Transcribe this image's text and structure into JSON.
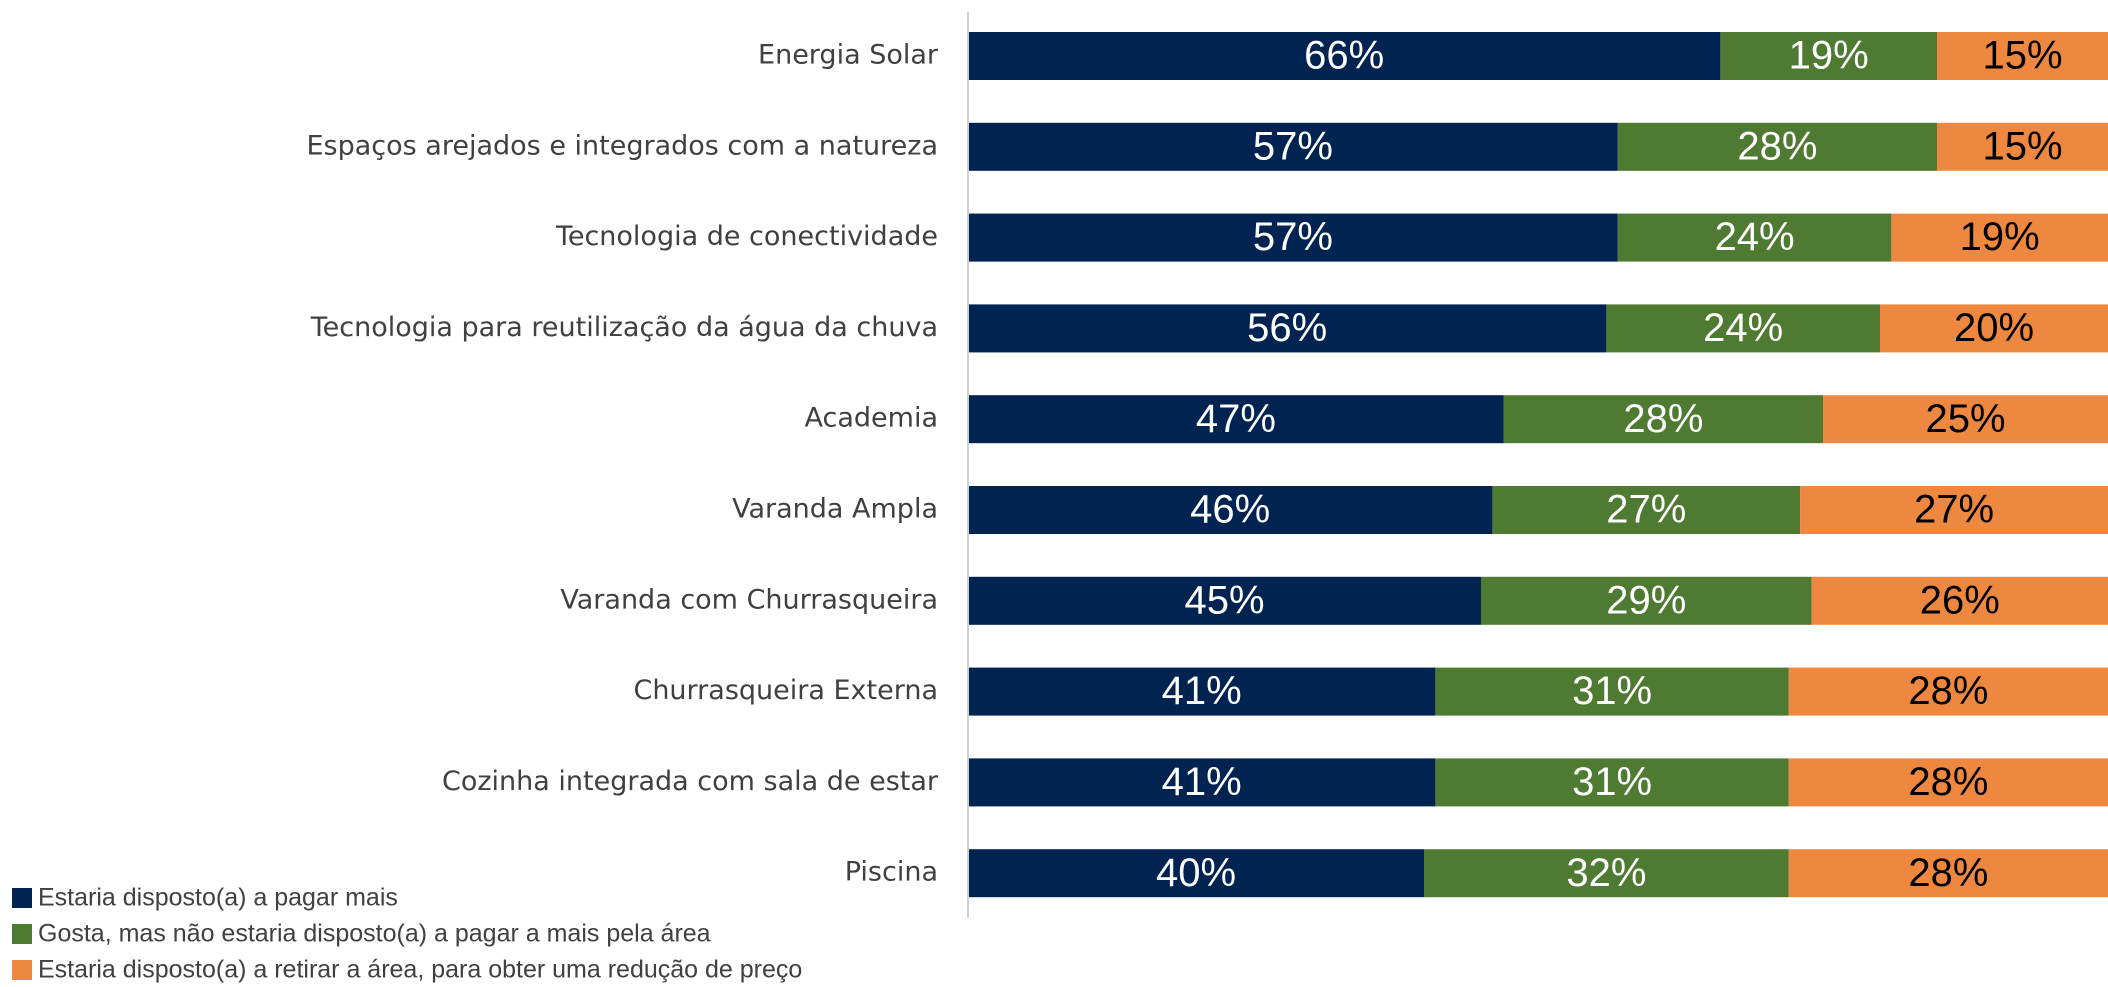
{
  "chart_data": {
    "type": "stacked-bar-horizontal",
    "categories": [
      "Energia Solar",
      "Espaços arejados e integrados com a natureza",
      "Tecnologia de conectividade",
      "Tecnologia para reutilização da água da chuva",
      "Academia",
      "Varanda Ampla",
      "Varanda com Churrasqueira",
      "Churrasqueira Externa",
      "Cozinha integrada com sala de estar",
      "Piscina"
    ],
    "series": [
      {
        "name": "Estaria disposto(a) a pagar mais",
        "color": "#002352",
        "values": [
          66,
          57,
          57,
          56,
          47,
          46,
          45,
          41,
          41,
          40
        ],
        "value_labels": [
          "66%",
          "57%",
          "57%",
          "56%",
          "47%",
          "46%",
          "45%",
          "41%",
          "41%",
          "40%"
        ]
      },
      {
        "name": "Gosta, mas não estaria disposto(a) a pagar a mais pela área",
        "color": "#4f7a32",
        "values": [
          19,
          28,
          24,
          24,
          28,
          27,
          29,
          31,
          31,
          32
        ],
        "value_labels": [
          "19%",
          "28%",
          "24%",
          "24%",
          "28%",
          "27%",
          "29%",
          "31%",
          "31%",
          "32%"
        ]
      },
      {
        "name": "Estaria disposto(a) a retirar a área, para obter uma redução de preço",
        "color": "#ee8840",
        "values": [
          15,
          15,
          19,
          20,
          25,
          27,
          26,
          28,
          28,
          28
        ],
        "value_labels": [
          "15%",
          "15%",
          "19%",
          "20%",
          "25%",
          "27%",
          "26%",
          "28%",
          "28%",
          "28%"
        ]
      }
    ],
    "xlim": [
      0,
      100
    ],
    "legend": "bottom-left"
  }
}
